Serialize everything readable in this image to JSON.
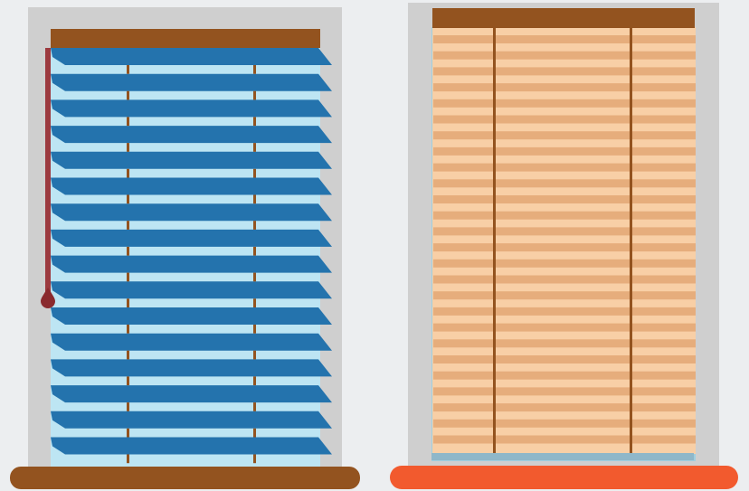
{
  "background": "#eceef0",
  "left_window": {
    "frame_color": "#cfcfcf",
    "glass_color": "#bde5f3",
    "headrail_color": "#93531f",
    "slat_color": "#2473ad",
    "ladder_cord_color": "#93531f",
    "wand_color": "#9c3a3f",
    "wand_tip_color": "#8a2a2e",
    "sill_color": "#93531f",
    "slat_count": 16,
    "slat_state": "tilted"
  },
  "right_window": {
    "frame_color": "#cfcfcf",
    "glass_color": "#9fcfe0",
    "headrail_color": "#93531f",
    "slat_color": "#e6ad7c",
    "slat_gap_color": "#f8cfa6",
    "ladder_cord_color": "#93531f",
    "bottom_rail_color": "#8fb7c9",
    "sill_color": "#f25a2e",
    "slat_count": 26,
    "slat_state": "closed"
  }
}
